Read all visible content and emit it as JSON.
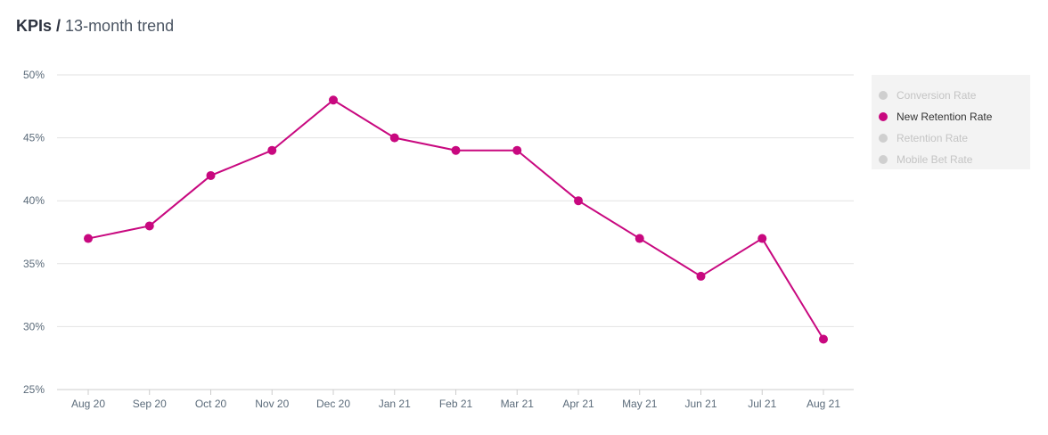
{
  "header": {
    "title_bold": "KPIs /",
    "title_rest": "13-month trend"
  },
  "colors": {
    "active_series": "#c8087f",
    "inactive_series": "#cfcfcf",
    "grid": "#e2e2e2",
    "axis_text": "#5b6b7a"
  },
  "legend": {
    "items": [
      {
        "label": "Conversion Rate",
        "active": false
      },
      {
        "label": "New Retention Rate",
        "active": true
      },
      {
        "label": "Retention Rate",
        "active": false
      },
      {
        "label": "Mobile Bet Rate",
        "active": false
      }
    ],
    "placement": "right"
  },
  "chart_data": {
    "type": "line",
    "title": "",
    "xlabel": "",
    "ylabel": "",
    "categories": [
      "Aug 20",
      "Sep 20",
      "Oct 20",
      "Nov 20",
      "Dec 20",
      "Jan 21",
      "Feb 21",
      "Mar 21",
      "Apr 21",
      "May 21",
      "Jun 21",
      "Jul 21",
      "Aug 21"
    ],
    "series": [
      {
        "name": "New Retention Rate",
        "values": [
          37,
          38,
          42,
          44,
          48,
          45,
          44,
          44,
          40,
          37,
          34,
          37,
          29
        ]
      }
    ],
    "ylim": [
      25,
      50
    ],
    "yticks": [
      25,
      30,
      35,
      40,
      45,
      50
    ],
    "ytick_labels": [
      "25%",
      "30%",
      "35%",
      "40%",
      "45%",
      "50%"
    ],
    "grid": true,
    "legend_placement": "right"
  }
}
